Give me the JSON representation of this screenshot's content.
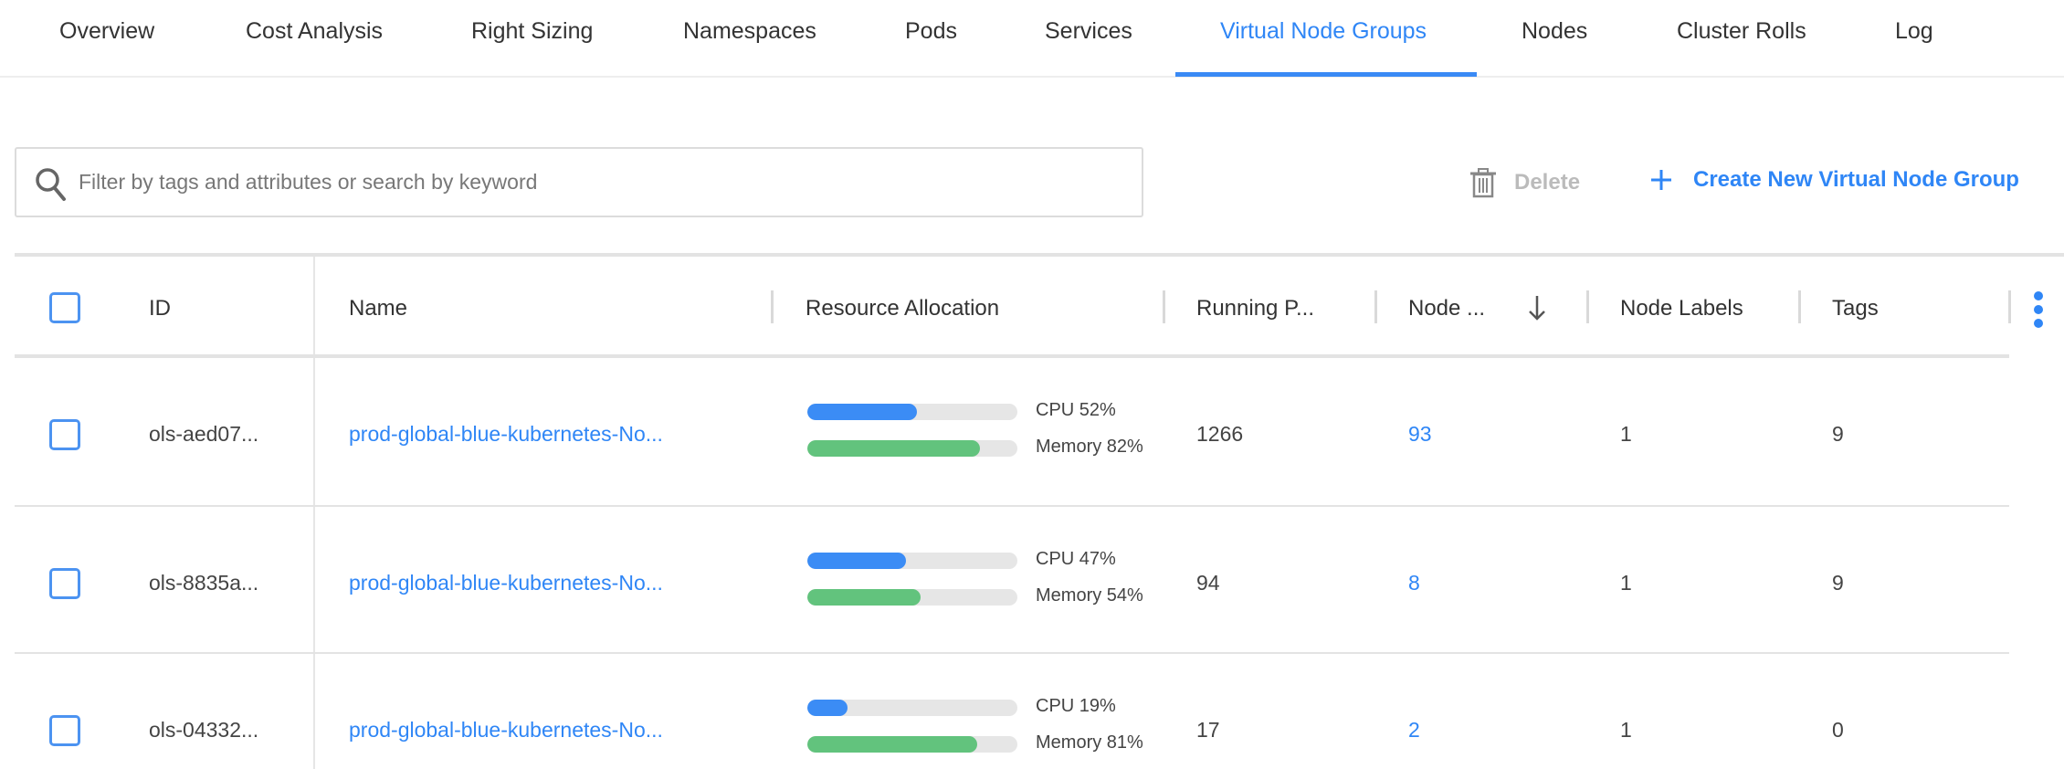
{
  "tabs": [
    {
      "label": "Overview",
      "active": false
    },
    {
      "label": "Cost Analysis",
      "active": false
    },
    {
      "label": "Right Sizing",
      "active": false
    },
    {
      "label": "Namespaces",
      "active": false
    },
    {
      "label": "Pods",
      "active": false
    },
    {
      "label": "Services",
      "active": false
    },
    {
      "label": "Virtual Node Groups",
      "active": true
    },
    {
      "label": "Nodes",
      "active": false
    },
    {
      "label": "Cluster Rolls",
      "active": false
    },
    {
      "label": "Log",
      "active": false
    }
  ],
  "search": {
    "placeholder": "Filter by tags and attributes or search by keyword",
    "value": "",
    "icon": "search-icon"
  },
  "toolbar": {
    "delete_label": "Delete",
    "delete_enabled": false,
    "create_label": "Create New Virtual Node Group"
  },
  "table": {
    "columns": [
      "ID",
      "Name",
      "Resource Allocation",
      "Running P...",
      "Node ...",
      "Node Labels",
      "Tags"
    ],
    "sort": {
      "column": "Node ...",
      "direction": "descending"
    },
    "rows": [
      {
        "id": "ols-aed07...",
        "name": "prod-global-blue-kubernetes-No...",
        "cpu_label": "CPU 52%",
        "cpu": 52,
        "mem_label": "Memory 82%",
        "mem": 82,
        "running_pods": "1266",
        "nodes": "93",
        "node_labels": "1",
        "tags": "9"
      },
      {
        "id": "ols-8835a...",
        "name": "prod-global-blue-kubernetes-No...",
        "cpu_label": "CPU 47%",
        "cpu": 47,
        "mem_label": "Memory 54%",
        "mem": 54,
        "running_pods": "94",
        "nodes": "8",
        "node_labels": "1",
        "tags": "9"
      },
      {
        "id": "ols-04332...",
        "name": "prod-global-blue-kubernetes-No...",
        "cpu_label": "CPU 19%",
        "cpu": 19,
        "mem_label": "Memory 81%",
        "mem": 81,
        "running_pods": "17",
        "nodes": "2",
        "node_labels": "1",
        "tags": "0"
      }
    ]
  },
  "colors": {
    "accent": "#2f86f6",
    "cpu": "#3b8cf5",
    "memory": "#62c37d",
    "track": "#e6e6e6"
  }
}
